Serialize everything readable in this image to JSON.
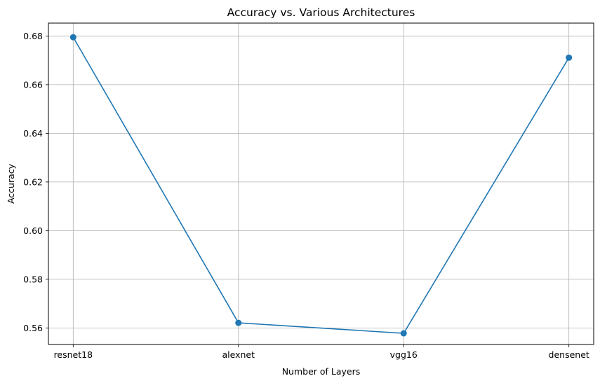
{
  "chart_data": {
    "type": "line",
    "title": "Accuracy vs. Various Architectures",
    "xlabel": "Number of Layers",
    "ylabel": "Accuracy",
    "categories": [
      "resnet18",
      "alexnet",
      "vgg16",
      "densenet"
    ],
    "series": [
      {
        "values": [
          0.6795,
          0.5621,
          0.5578,
          0.6711
        ]
      }
    ],
    "ylim": [
      0.5532,
      0.6853
    ],
    "yticks": [
      "0.56",
      "0.58",
      "0.60",
      "0.62",
      "0.64",
      "0.66",
      "0.68"
    ],
    "grid": true,
    "line_color": "#1f77b4",
    "grid_color": "#b0b0b0"
  }
}
